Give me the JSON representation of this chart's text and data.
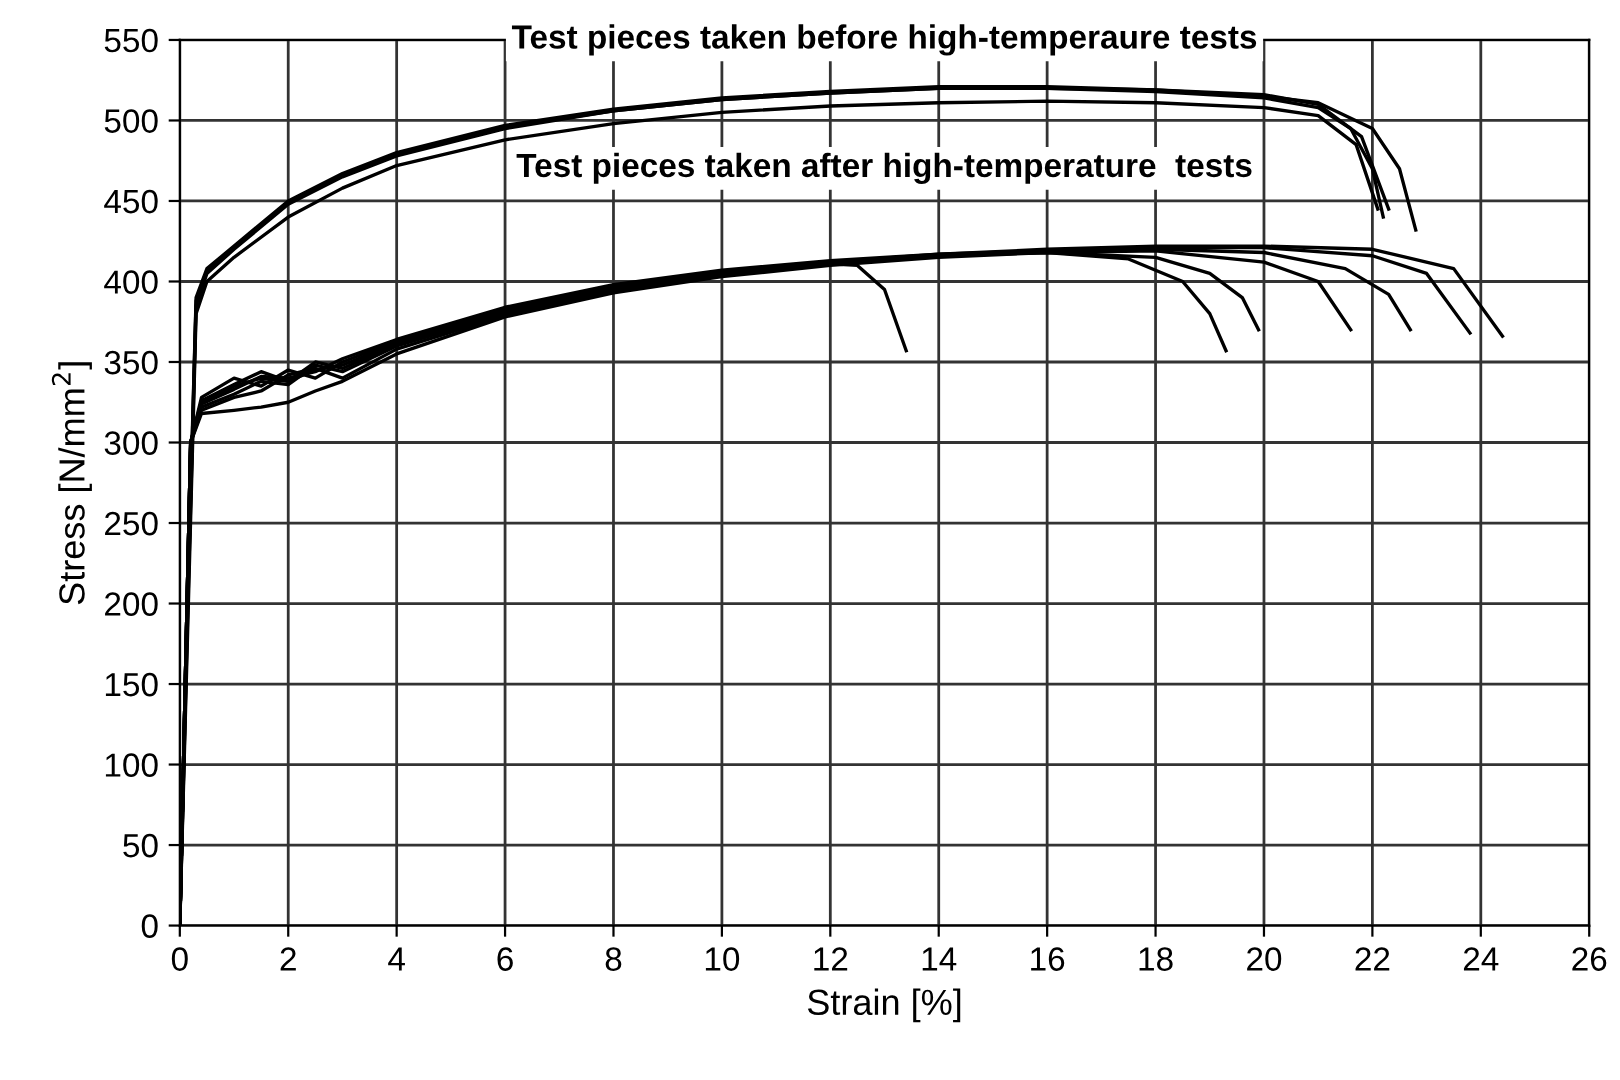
{
  "chart_data": {
    "type": "line",
    "xlabel": "Strain [%]",
    "ylabel": "Stress [N/mm$^{2}$]",
    "annotations": [
      "Test pieces taken before high-temperaure tests",
      "Test pieces taken after high-temperature  tests"
    ],
    "xlim": [
      0,
      26
    ],
    "xticks": [
      0,
      2,
      4,
      6,
      8,
      10,
      12,
      14,
      16,
      18,
      20,
      22,
      24,
      26
    ],
    "ylim": [
      0,
      550
    ],
    "yticks": [
      0,
      50,
      100,
      150,
      200,
      250,
      300,
      350,
      400,
      450,
      500,
      550
    ],
    "grid": true,
    "legend": false,
    "marker": "none",
    "line_style": "solid",
    "series": [
      {
        "color": "#000000",
        "x": [
          0,
          0.15,
          0.3,
          0.5,
          1,
          2,
          3,
          4,
          6,
          8,
          10,
          12,
          14,
          16,
          18,
          20,
          21,
          21.6,
          22,
          22.2
        ],
        "values": [
          0,
          200,
          385,
          405,
          420,
          448,
          465,
          478,
          495,
          506,
          513,
          517,
          520,
          520,
          518,
          514,
          508,
          495,
          470,
          440
        ]
      },
      {
        "color": "#000000",
        "x": [
          0,
          0.15,
          0.3,
          0.5,
          1,
          2,
          3,
          4,
          6,
          8,
          10,
          12,
          14,
          16,
          18,
          20,
          21,
          22,
          22.5,
          22.8
        ],
        "values": [
          0,
          210,
          390,
          408,
          422,
          450,
          467,
          480,
          497,
          507,
          514,
          518,
          521,
          521,
          519,
          515,
          511,
          495,
          470,
          432
        ]
      },
      {
        "color": "#000000",
        "x": [
          0,
          0.15,
          0.3,
          0.5,
          1,
          2,
          3,
          4,
          6,
          8,
          10,
          12,
          14,
          16,
          18,
          20,
          21,
          21.7,
          22.1
        ],
        "values": [
          0,
          190,
          380,
          400,
          415,
          440,
          458,
          472,
          488,
          498,
          505,
          509,
          511,
          512,
          511,
          508,
          503,
          485,
          445
        ]
      },
      {
        "color": "#000000",
        "x": [
          0,
          0.15,
          0.3,
          0.5,
          1,
          2,
          3,
          4,
          6,
          8,
          10,
          12,
          14,
          16,
          18,
          20,
          21,
          21.8,
          22.3
        ],
        "values": [
          0,
          205,
          388,
          406,
          421,
          449,
          466,
          479,
          496,
          506,
          513,
          517,
          520,
          520,
          519,
          516,
          510,
          490,
          445
        ]
      },
      {
        "color": "#000000",
        "x": [
          0,
          0.1,
          0.2,
          0.4,
          1,
          1.5,
          2,
          2.5,
          3,
          4,
          6,
          8,
          10,
          12,
          12.5,
          13,
          13.4
        ],
        "values": [
          0,
          150,
          300,
          325,
          335,
          340,
          338,
          345,
          348,
          362,
          382,
          396,
          405,
          411,
          410,
          395,
          357
        ]
      },
      {
        "color": "#000000",
        "x": [
          0,
          0.1,
          0.2,
          0.4,
          1,
          1.5,
          2,
          2.5,
          3,
          4,
          6,
          8,
          10,
          12,
          14,
          16,
          17.5,
          18.5,
          19,
          19.3
        ],
        "values": [
          0,
          150,
          300,
          318,
          320,
          322,
          325,
          332,
          338,
          355,
          378,
          393,
          403,
          410,
          415,
          418,
          414,
          400,
          380,
          357
        ]
      },
      {
        "color": "#000000",
        "x": [
          0,
          0.1,
          0.2,
          0.4,
          1,
          1.5,
          2,
          2.5,
          3,
          4,
          6,
          8,
          10,
          12,
          14,
          16,
          18,
          19,
          19.6,
          19.9
        ],
        "values": [
          0,
          150,
          300,
          328,
          340,
          335,
          345,
          340,
          350,
          363,
          383,
          397,
          406,
          412,
          416,
          418,
          415,
          405,
          390,
          370
        ]
      },
      {
        "color": "#000000",
        "x": [
          0,
          0.1,
          0.2,
          0.4,
          1,
          1.5,
          2,
          2.5,
          3,
          4,
          6,
          8,
          10,
          12,
          14,
          16,
          18,
          20,
          21,
          21.6
        ],
        "values": [
          0,
          150,
          300,
          322,
          330,
          338,
          336,
          348,
          344,
          360,
          380,
          395,
          404,
          411,
          416,
          418,
          419,
          412,
          400,
          370
        ]
      },
      {
        "color": "#000000",
        "x": [
          0,
          0.1,
          0.2,
          0.4,
          1,
          1.5,
          2,
          2.5,
          3,
          4,
          6,
          8,
          10,
          12,
          14,
          16,
          18,
          20,
          21.5,
          22.3,
          22.7
        ],
        "values": [
          0,
          150,
          300,
          324,
          333,
          341,
          340,
          344,
          352,
          364,
          384,
          398,
          407,
          413,
          417,
          419,
          420,
          418,
          408,
          392,
          370
        ]
      },
      {
        "color": "#000000",
        "x": [
          0,
          0.1,
          0.2,
          0.4,
          1,
          1.5,
          2,
          2.5,
          3,
          4,
          6,
          8,
          10,
          12,
          14,
          16,
          18,
          20,
          22,
          23,
          23.8
        ],
        "values": [
          0,
          150,
          300,
          320,
          328,
          332,
          342,
          346,
          340,
          358,
          379,
          394,
          404,
          411,
          416,
          419,
          421,
          421,
          416,
          405,
          368
        ]
      },
      {
        "color": "#000000",
        "x": [
          0,
          0.1,
          0.2,
          0.4,
          1,
          1.5,
          2,
          2.5,
          3,
          4,
          6,
          8,
          10,
          12,
          14,
          16,
          18,
          20,
          22,
          23.5,
          24.4
        ],
        "values": [
          0,
          150,
          300,
          326,
          336,
          344,
          338,
          350,
          346,
          361,
          381,
          396,
          405,
          412,
          417,
          420,
          422,
          422,
          420,
          408,
          366
        ]
      }
    ]
  }
}
